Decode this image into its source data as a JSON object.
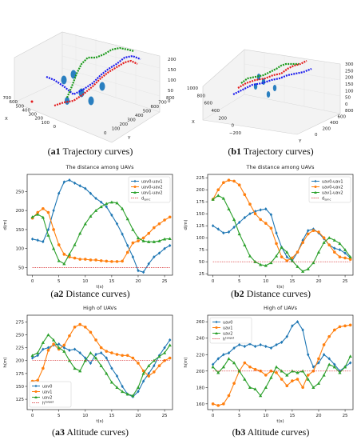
{
  "captions": {
    "a1": {
      "label": "a1",
      "text": " Trajectory curves"
    },
    "b1": {
      "label": "b1",
      "text": " Trajectory curves"
    },
    "a2": {
      "label": "a2",
      "text": " Distance curves"
    },
    "b2": {
      "label": "b2",
      "text": " Distance curves"
    },
    "a3": {
      "label": "a3",
      "text": " Altitude curves"
    },
    "b3": {
      "label": "b3",
      "text": " Altitude curves"
    }
  },
  "scene3d": {
    "a1": {
      "x_ticks": [
        "700",
        "600",
        "500",
        "400",
        "300",
        "200",
        "100",
        "0"
      ],
      "y_ticks": [
        "0",
        "100",
        "200",
        "300",
        "400",
        "500",
        "600",
        "700",
        "800"
      ],
      "z_ticks": [
        "200",
        "150",
        "100",
        "50",
        "0"
      ],
      "x_label": "X",
      "y_label": "Y"
    },
    "b1": {
      "x_ticks": [
        "1000",
        "800",
        "600",
        "400",
        "200",
        "0",
        "−200"
      ],
      "y_ticks": [
        "0",
        "200",
        "400",
        "600",
        "800"
      ],
      "z_ticks": [
        "300",
        "250",
        "200",
        "150",
        "100",
        "50",
        "0"
      ],
      "x_label": "X",
      "y_label": "Y"
    }
  },
  "chart_data": [
    {
      "id": "a2",
      "type": "line",
      "title": "The distance among UAVs",
      "xlabel": "t(s)",
      "ylabel": "d(m)",
      "xlim": [
        -1,
        26.5
      ],
      "ylim": [
        30,
        295
      ],
      "xticks": [
        0,
        5,
        10,
        15,
        20,
        25
      ],
      "yticks": [
        50,
        100,
        150,
        200,
        250
      ],
      "legend_position": "top-right",
      "x": [
        0,
        1,
        2,
        3,
        4,
        5,
        6,
        7,
        8,
        9,
        10,
        11,
        12,
        13,
        14,
        15,
        16,
        17,
        18,
        19,
        20,
        21,
        22,
        23,
        24,
        25,
        26
      ],
      "series": [
        {
          "name": "uav0-uav1",
          "color": "#1f77b4",
          "marker": "diamond",
          "values": [
            125,
            122,
            118,
            150,
            200,
            245,
            275,
            280,
            272,
            265,
            258,
            245,
            232,
            222,
            210,
            188,
            165,
            138,
            108,
            78,
            42,
            38,
            60,
            78,
            88,
            100,
            108
          ]
        },
        {
          "name": "uav0-uav2",
          "color": "#ff7f0e",
          "marker": "circle",
          "values": [
            180,
            195,
            205,
            195,
            150,
            110,
            85,
            78,
            75,
            72,
            72,
            70,
            70,
            68,
            67,
            66,
            66,
            67,
            90,
            115,
            120,
            128,
            140,
            155,
            165,
            175,
            183
          ]
        },
        {
          "name": "uav1-uav2",
          "color": "#2ca02c",
          "marker": "triangle",
          "values": [
            183,
            190,
            182,
            135,
            100,
            68,
            60,
            85,
            110,
            140,
            165,
            185,
            200,
            210,
            218,
            222,
            220,
            205,
            178,
            150,
            128,
            120,
            118,
            118,
            120,
            125,
            126
          ]
        },
        {
          "name": "d_sync",
          "label_base": "d",
          "label_sub": "sync",
          "color": "#d62728",
          "dashed": true,
          "values": [
            50,
            50,
            50,
            50,
            50,
            50,
            50,
            50,
            50,
            50,
            50,
            50,
            50,
            50,
            50,
            50,
            50,
            50,
            50,
            50,
            50,
            50,
            50,
            50,
            50,
            50,
            50
          ]
        }
      ]
    },
    {
      "id": "b2",
      "type": "line",
      "title": "The distance among UAVs",
      "xlabel": "t(s)",
      "ylabel": "d(m)",
      "xlim": [
        -1,
        26.5
      ],
      "ylim": [
        22,
        232
      ],
      "xticks": [
        0,
        5,
        10,
        15,
        20,
        25
      ],
      "yticks": [
        25,
        50,
        75,
        100,
        125,
        150,
        175,
        200,
        225
      ],
      "legend_position": "top-right",
      "x": [
        0,
        1,
        2,
        3,
        4,
        5,
        6,
        7,
        8,
        9,
        10,
        11,
        12,
        13,
        14,
        15,
        16,
        17,
        18,
        19,
        20,
        21,
        22,
        23,
        24,
        25,
        26
      ],
      "series": [
        {
          "name": "uav0-uav1",
          "color": "#1f77b4",
          "marker": "diamond",
          "values": [
            125,
            118,
            110,
            112,
            122,
            132,
            142,
            150,
            155,
            158,
            160,
            148,
            110,
            80,
            60,
            52,
            70,
            95,
            115,
            118,
            110,
            98,
            85,
            78,
            75,
            68,
            58
          ]
        },
        {
          "name": "uav0-uav2",
          "color": "#ff7f0e",
          "marker": "circle",
          "values": [
            180,
            200,
            215,
            220,
            218,
            210,
            190,
            170,
            150,
            138,
            130,
            120,
            88,
            60,
            52,
            58,
            70,
            90,
            108,
            115,
            112,
            100,
            85,
            70,
            60,
            58,
            55
          ]
        },
        {
          "name": "uav1-uav2",
          "color": "#2ca02c",
          "marker": "triangle",
          "values": [
            180,
            188,
            182,
            160,
            138,
            108,
            85,
            62,
            50,
            44,
            42,
            48,
            62,
            80,
            70,
            52,
            40,
            30,
            35,
            48,
            70,
            90,
            100,
            95,
            88,
            75,
            60
          ]
        },
        {
          "name": "d_sync",
          "label_base": "d",
          "label_sub": "sync",
          "color": "#d62728",
          "dashed": true,
          "values": [
            50,
            50,
            50,
            50,
            50,
            50,
            50,
            50,
            50,
            50,
            50,
            50,
            50,
            50,
            50,
            50,
            50,
            50,
            50,
            50,
            50,
            50,
            50,
            50,
            50,
            50,
            50
          ]
        }
      ]
    },
    {
      "id": "a3",
      "type": "line",
      "title": "High of UAVs",
      "xlabel": "t(s)",
      "ylabel": "h(m)",
      "xlim": [
        -1,
        26.5
      ],
      "ylim": [
        105,
        288
      ],
      "xticks": [
        0,
        5,
        10,
        15,
        20,
        25
      ],
      "yticks": [
        125,
        150,
        175,
        200,
        225,
        250,
        275
      ],
      "legend_position": "bottom-left",
      "x": [
        0,
        1,
        2,
        3,
        4,
        5,
        6,
        7,
        8,
        9,
        10,
        11,
        12,
        13,
        14,
        15,
        16,
        17,
        18,
        19,
        20,
        21,
        22,
        23,
        24,
        25,
        26
      ],
      "series": [
        {
          "name": "uav0",
          "color": "#1f77b4",
          "marker": "diamond",
          "values": [
            205,
            210,
            222,
            225,
            230,
            232,
            225,
            220,
            222,
            215,
            205,
            195,
            212,
            215,
            205,
            185,
            170,
            150,
            135,
            130,
            140,
            160,
            175,
            190,
            210,
            225,
            240
          ]
        },
        {
          "name": "uav1",
          "color": "#ff7f0e",
          "marker": "circle",
          "values": [
            160,
            162,
            185,
            220,
            232,
            222,
            230,
            248,
            265,
            270,
            265,
            255,
            240,
            225,
            218,
            215,
            212,
            210,
            210,
            205,
            195,
            180,
            170,
            178,
            190,
            200,
            205
          ]
        },
        {
          "name": "uav2",
          "color": "#2ca02c",
          "marker": "triangle",
          "values": [
            210,
            215,
            235,
            250,
            240,
            225,
            218,
            200,
            185,
            180,
            200,
            215,
            205,
            190,
            175,
            158,
            148,
            140,
            135,
            132,
            148,
            175,
            190,
            200,
            208,
            215,
            230
          ]
        },
        {
          "name": "h_target",
          "label_base": "h",
          "label_sup": "target",
          "color": "#d62728",
          "dashed": true,
          "values": [
            200,
            200,
            200,
            200,
            200,
            200,
            200,
            200,
            200,
            200,
            200,
            200,
            200,
            200,
            200,
            200,
            200,
            200,
            200,
            200,
            200,
            200,
            200,
            200,
            200,
            200,
            200
          ]
        }
      ]
    },
    {
      "id": "b3",
      "type": "line",
      "title": "High of UAVs",
      "xlabel": "t(s)",
      "ylabel": "h(m)",
      "xlim": [
        -1,
        26.5
      ],
      "ylim": [
        153,
        268
      ],
      "xticks": [
        0,
        5,
        10,
        15,
        20,
        25
      ],
      "yticks": [
        160,
        180,
        200,
        220,
        240,
        260
      ],
      "legend_position": "top-left",
      "x": [
        0,
        1,
        2,
        3,
        4,
        5,
        6,
        7,
        8,
        9,
        10,
        11,
        12,
        13,
        14,
        15,
        16,
        17,
        18,
        19,
        20,
        21,
        22,
        23,
        24,
        25,
        26
      ],
      "series": [
        {
          "name": "uav0",
          "color": "#1f77b4",
          "marker": "diamond",
          "values": [
            208,
            215,
            220,
            222,
            228,
            232,
            230,
            233,
            230,
            232,
            230,
            228,
            232,
            235,
            242,
            255,
            260,
            250,
            220,
            205,
            210,
            220,
            215,
            208,
            200,
            205,
            210
          ]
        },
        {
          "name": "uav1",
          "color": "#ff7f0e",
          "marker": "circle",
          "values": [
            160,
            158,
            160,
            170,
            185,
            200,
            210,
            205,
            202,
            200,
            195,
            200,
            198,
            190,
            182,
            188,
            190,
            180,
            195,
            200,
            215,
            232,
            242,
            250,
            254,
            255,
            256
          ]
        },
        {
          "name": "uav2",
          "color": "#2ca02c",
          "marker": "triangle",
          "values": [
            205,
            198,
            205,
            215,
            210,
            200,
            190,
            180,
            178,
            170,
            180,
            192,
            205,
            200,
            195,
            200,
            198,
            200,
            190,
            180,
            185,
            195,
            208,
            205,
            198,
            205,
            218
          ]
        },
        {
          "name": "h_target",
          "label_base": "h",
          "label_sup": "target",
          "color": "#d62728",
          "dashed": true,
          "values": [
            200,
            200,
            200,
            200,
            200,
            200,
            200,
            200,
            200,
            200,
            200,
            200,
            200,
            200,
            200,
            200,
            200,
            200,
            200,
            200,
            200,
            200,
            200,
            200,
            200,
            200,
            200
          ]
        }
      ]
    }
  ]
}
